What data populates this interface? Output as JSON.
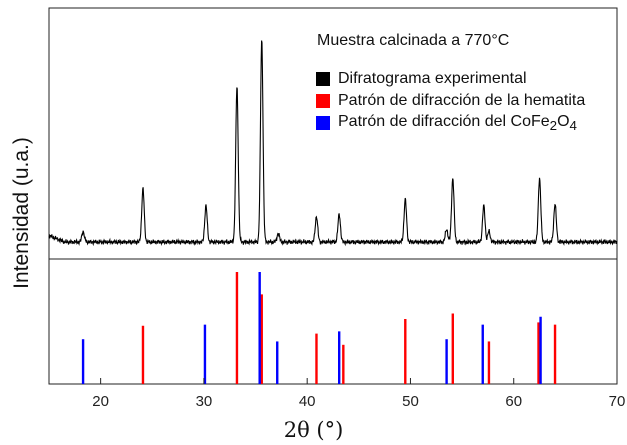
{
  "chart_data": {
    "type": "line",
    "annotation": "Muestra calcinada a 770°C",
    "ylabel": "Intensidad (u.a.)",
    "xlabel": "2θ (°)",
    "xlim": [
      15,
      70
    ],
    "x_ticks": [
      20,
      30,
      40,
      50,
      60,
      70
    ],
    "y_ticks_visible": false,
    "grid": false,
    "legend_position": "top-right",
    "legend": [
      {
        "label_parts": [
          "Difratograma experimental"
        ],
        "color": "#000000"
      },
      {
        "label_parts": [
          "Patrón de difracción de la hematita"
        ],
        "color": "#ff0000"
      },
      {
        "label_parts": [
          "Patrón de difracción del CoFe",
          "2",
          "O",
          "4"
        ],
        "color": "#0000ff"
      }
    ],
    "series": [
      {
        "name": "Difratograma experimental",
        "kind": "xrd-pattern",
        "color": "#000000",
        "baseline": 0.05,
        "peaks": [
          {
            "x": 18.3,
            "height": 0.05
          },
          {
            "x": 24.1,
            "height": 0.25
          },
          {
            "x": 30.2,
            "height": 0.17
          },
          {
            "x": 33.2,
            "height": 0.73
          },
          {
            "x": 35.6,
            "height": 0.95
          },
          {
            "x": 37.2,
            "height": 0.04
          },
          {
            "x": 40.9,
            "height": 0.12
          },
          {
            "x": 43.1,
            "height": 0.13
          },
          {
            "x": 49.5,
            "height": 0.2
          },
          {
            "x": 53.5,
            "height": 0.06
          },
          {
            "x": 54.1,
            "height": 0.3
          },
          {
            "x": 57.1,
            "height": 0.17
          },
          {
            "x": 57.6,
            "height": 0.05
          },
          {
            "x": 62.5,
            "height": 0.3
          },
          {
            "x": 64.0,
            "height": 0.18
          }
        ]
      },
      {
        "name": "Patrón de difracción de la hematita",
        "kind": "reference-lines",
        "color": "#ff0000",
        "x": [
          24.1,
          33.2,
          35.6,
          40.9,
          43.5,
          49.5,
          54.1,
          57.6,
          62.4,
          64.0
        ],
        "values": [
          0.52,
          1.0,
          0.8,
          0.45,
          0.35,
          0.58,
          0.63,
          0.38,
          0.55,
          0.53
        ]
      },
      {
        "name": "Patrón de difracción del CoFe2O4",
        "kind": "reference-lines",
        "color": "#0000ff",
        "x": [
          18.3,
          30.1,
          35.4,
          37.1,
          43.1,
          53.5,
          57.0,
          62.6
        ],
        "values": [
          0.4,
          0.53,
          1.0,
          0.38,
          0.47,
          0.4,
          0.53,
          0.6
        ]
      }
    ]
  }
}
